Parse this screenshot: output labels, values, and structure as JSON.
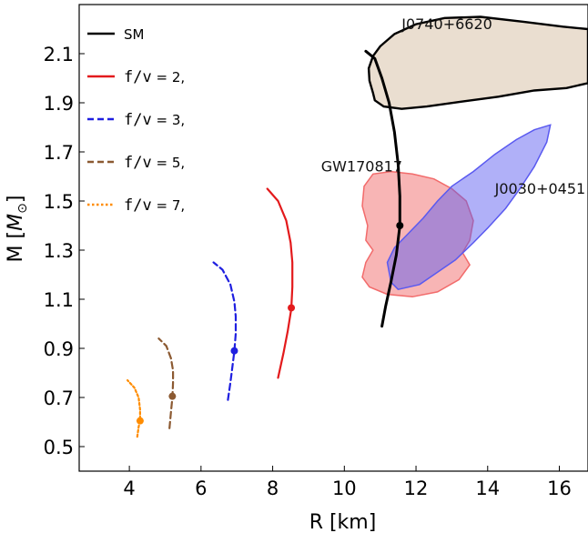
{
  "chart_data": {
    "type": "line",
    "xlabel": "R [km]",
    "ylabel_main": "M [",
    "ylabel_sym": "M",
    "ylabel_sub": "⊙",
    "ylabel_close": "]",
    "xlim": [
      2.6,
      16.8
    ],
    "ylim": [
      0.4,
      2.3
    ],
    "xticks": [
      4,
      6,
      8,
      10,
      12,
      14,
      16
    ],
    "yticks": [
      0.5,
      0.7,
      0.9,
      1.1,
      1.3,
      1.5,
      1.7,
      1.9,
      2.1
    ],
    "ytick_labels": [
      "0.5",
      "0.7",
      "0.9",
      "1.1",
      "1.3",
      "1.5",
      "1.7",
      "1.9",
      "2.1"
    ],
    "legend": {
      "position": "top-left",
      "entries": [
        {
          "label": "SM",
          "label_mono": "",
          "label_suffix": "",
          "color": "#000000",
          "dash": "solid"
        },
        {
          "label": "",
          "label_mono": "f/v",
          "label_suffix": " = 2,",
          "color": "#e31a1c",
          "dash": "solid"
        },
        {
          "label": "",
          "label_mono": "f/v",
          "label_suffix": " = 3,",
          "color": "#1f1fe0",
          "dash": "dashed"
        },
        {
          "label": "",
          "label_mono": "f/v",
          "label_suffix": " = 5,",
          "color": "#8c5a32",
          "dash": "dashed"
        },
        {
          "label": "",
          "label_mono": "f/v",
          "label_suffix": " = 7,",
          "color": "#ff8c00",
          "dash": "dotted"
        }
      ]
    },
    "series": [
      {
        "color": "#000000",
        "dash": "solid",
        "points": [
          [
            11.05,
            0.99
          ],
          [
            11.15,
            1.07
          ],
          [
            11.3,
            1.17
          ],
          [
            11.45,
            1.28
          ],
          [
            11.55,
            1.4
          ],
          [
            11.55,
            1.52
          ],
          [
            11.5,
            1.65
          ],
          [
            11.4,
            1.78
          ],
          [
            11.25,
            1.9
          ],
          [
            11.05,
            2.0
          ],
          [
            10.85,
            2.08
          ],
          [
            10.6,
            2.11
          ]
        ],
        "marker": [
          11.55,
          1.4
        ]
      },
      {
        "color": "#e31a1c",
        "dash": "solid",
        "points": [
          [
            8.15,
            0.78
          ],
          [
            8.3,
            0.88
          ],
          [
            8.42,
            0.97
          ],
          [
            8.52,
            1.06
          ],
          [
            8.55,
            1.15
          ],
          [
            8.55,
            1.25
          ],
          [
            8.5,
            1.33
          ],
          [
            8.38,
            1.42
          ],
          [
            8.15,
            1.5
          ],
          [
            7.85,
            1.55
          ]
        ],
        "marker": [
          8.52,
          1.065
        ]
      },
      {
        "color": "#1f1fe0",
        "dash": "dashed",
        "points": [
          [
            6.75,
            0.69
          ],
          [
            6.82,
            0.76
          ],
          [
            6.88,
            0.83
          ],
          [
            6.93,
            0.89
          ],
          [
            6.97,
            0.96
          ],
          [
            6.97,
            1.03
          ],
          [
            6.93,
            1.09
          ],
          [
            6.82,
            1.16
          ],
          [
            6.6,
            1.22
          ],
          [
            6.35,
            1.25
          ]
        ],
        "marker": [
          6.93,
          0.89
        ]
      },
      {
        "color": "#8c5a32",
        "dash": "dashed",
        "points": [
          [
            5.12,
            0.575
          ],
          [
            5.16,
            0.64
          ],
          [
            5.2,
            0.7
          ],
          [
            5.22,
            0.76
          ],
          [
            5.22,
            0.81
          ],
          [
            5.16,
            0.86
          ],
          [
            5.03,
            0.91
          ],
          [
            4.82,
            0.94
          ]
        ],
        "marker": [
          5.2,
          0.705
        ]
      },
      {
        "color": "#ff8c00",
        "dash": "dotted",
        "points": [
          [
            4.22,
            0.54
          ],
          [
            4.26,
            0.58
          ],
          [
            4.3,
            0.605
          ],
          [
            4.3,
            0.65
          ],
          [
            4.26,
            0.7
          ],
          [
            4.14,
            0.74
          ],
          [
            3.95,
            0.77
          ]
        ],
        "marker": [
          4.3,
          0.605
        ]
      }
    ],
    "regions": [
      {
        "name": "J0740+6620",
        "fill": "#d8c3aa",
        "fill_opacity": 0.55,
        "stroke": "#000000",
        "label_x": 11.6,
        "label_y": 2.2,
        "points": [
          [
            10.8,
            1.94
          ],
          [
            10.7,
            1.99
          ],
          [
            10.68,
            2.04
          ],
          [
            10.8,
            2.09
          ],
          [
            11.0,
            2.13
          ],
          [
            11.4,
            2.18
          ],
          [
            12.0,
            2.22
          ],
          [
            12.8,
            2.245
          ],
          [
            13.8,
            2.25
          ],
          [
            15.0,
            2.23
          ],
          [
            16.1,
            2.21
          ],
          [
            16.8,
            2.2
          ],
          [
            16.8,
            1.98
          ],
          [
            16.2,
            1.96
          ],
          [
            15.3,
            1.95
          ],
          [
            14.3,
            1.925
          ],
          [
            13.3,
            1.905
          ],
          [
            12.3,
            1.885
          ],
          [
            11.6,
            1.875
          ],
          [
            11.1,
            1.885
          ],
          [
            10.85,
            1.91
          ]
        ]
      },
      {
        "name": "GW170817",
        "fill": "#f26b6b",
        "fill_opacity": 0.5,
        "stroke": "#f26b6b",
        "label_x": 9.35,
        "label_y": 1.62,
        "points": [
          [
            10.8,
            1.3
          ],
          [
            10.6,
            1.25
          ],
          [
            10.5,
            1.19
          ],
          [
            10.7,
            1.15
          ],
          [
            11.2,
            1.12
          ],
          [
            11.9,
            1.11
          ],
          [
            12.6,
            1.13
          ],
          [
            13.2,
            1.18
          ],
          [
            13.5,
            1.24
          ],
          [
            13.3,
            1.29
          ],
          [
            13.5,
            1.34
          ],
          [
            13.6,
            1.42
          ],
          [
            13.4,
            1.5
          ],
          [
            13.0,
            1.55
          ],
          [
            12.5,
            1.59
          ],
          [
            11.9,
            1.61
          ],
          [
            11.3,
            1.62
          ],
          [
            10.8,
            1.61
          ],
          [
            10.55,
            1.56
          ],
          [
            10.5,
            1.48
          ],
          [
            10.65,
            1.4
          ],
          [
            10.6,
            1.34
          ]
        ]
      },
      {
        "name": "J0030+0451",
        "fill": "#5a5af0",
        "fill_opacity": 0.48,
        "stroke": "#5a5af0",
        "label_x": 14.2,
        "label_y": 1.53,
        "points": [
          [
            11.5,
            1.14
          ],
          [
            11.3,
            1.17
          ],
          [
            11.2,
            1.25
          ],
          [
            11.4,
            1.31
          ],
          [
            11.8,
            1.37
          ],
          [
            12.2,
            1.43
          ],
          [
            12.6,
            1.5
          ],
          [
            13.0,
            1.56
          ],
          [
            13.6,
            1.62
          ],
          [
            14.2,
            1.69
          ],
          [
            14.8,
            1.75
          ],
          [
            15.3,
            1.79
          ],
          [
            15.75,
            1.81
          ],
          [
            15.65,
            1.74
          ],
          [
            15.3,
            1.64
          ],
          [
            14.9,
            1.55
          ],
          [
            14.5,
            1.47
          ],
          [
            14.0,
            1.39
          ],
          [
            13.6,
            1.33
          ],
          [
            13.1,
            1.26
          ],
          [
            12.6,
            1.21
          ],
          [
            12.1,
            1.16
          ]
        ]
      }
    ]
  }
}
